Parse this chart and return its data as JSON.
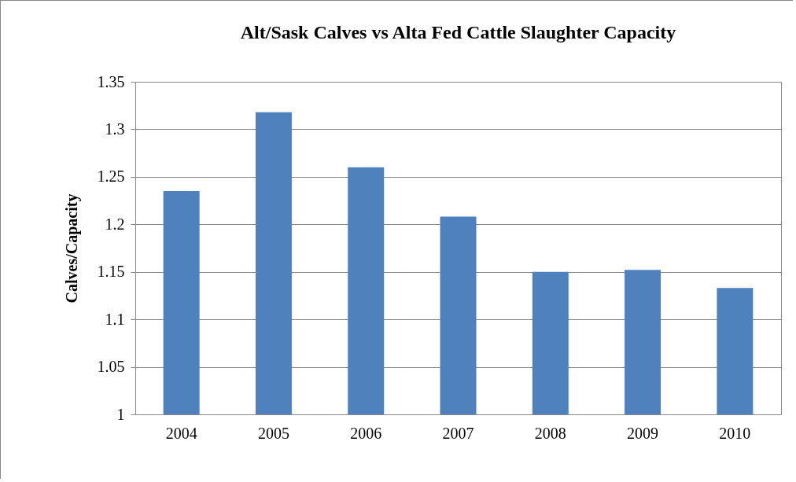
{
  "chart_data": {
    "type": "bar",
    "title": "Alt/Sask Calves vs Alta Fed Cattle Slaughter Capacity",
    "ylabel": "Calves/Capacity",
    "categories": [
      "2004",
      "2005",
      "2006",
      "2007",
      "2008",
      "2009",
      "2010"
    ],
    "values": [
      1.235,
      1.318,
      1.26,
      1.208,
      1.15,
      1.152,
      1.133
    ],
    "color": "#4f81bd",
    "ylim": [
      1,
      1.35
    ],
    "yticks": [
      1,
      1.05,
      1.1,
      1.15,
      1.2,
      1.25,
      1.3,
      1.35
    ],
    "grid": "y"
  }
}
